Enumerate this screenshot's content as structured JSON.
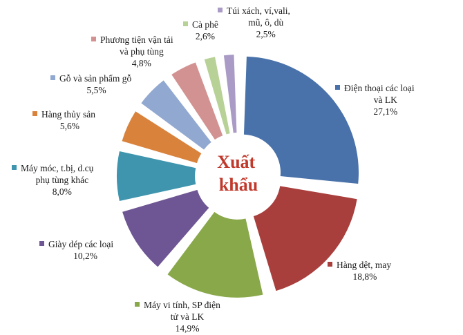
{
  "chart_data": {
    "type": "pie",
    "variant": "exploded-donut",
    "center_text": [
      "Xuất",
      "khẩu"
    ],
    "slices": [
      {
        "label_lines": [
          "Điện thoại các loại",
          "và LK"
        ],
        "value_text": "27,1%",
        "value": 27.1,
        "color": "#4a72aa"
      },
      {
        "label_lines": [
          "Hàng dệt, may"
        ],
        "value_text": "18,8%",
        "value": 18.8,
        "color": "#a93f3d"
      },
      {
        "label_lines": [
          "Máy vi tính, SP điện",
          "tử và LK"
        ],
        "value_text": "14,9%",
        "value": 14.9,
        "color": "#89a84a"
      },
      {
        "label_lines": [
          "Giày dép các loại"
        ],
        "value_text": "10,2%",
        "value": 10.2,
        "color": "#6e5593"
      },
      {
        "label_lines": [
          "Máy móc, t.bị, d.cụ",
          "phụ tùng khác"
        ],
        "value_text": "8,0%",
        "value": 8.0,
        "color": "#3e95ad"
      },
      {
        "label_lines": [
          "Hàng thủy sản"
        ],
        "value_text": "5,6%",
        "value": 5.6,
        "color": "#d9823c"
      },
      {
        "label_lines": [
          "Gỗ và sản phẩm gỗ"
        ],
        "value_text": "5,5%",
        "value": 5.5,
        "color": "#91a8d0"
      },
      {
        "label_lines": [
          "Phương tiện vận tải",
          "và phụ tùng"
        ],
        "value_text": "4,8%",
        "value": 4.8,
        "color": "#d39292"
      },
      {
        "label_lines": [
          "Cà phê"
        ],
        "value_text": "2,6%",
        "value": 2.6,
        "color": "#b7d197"
      },
      {
        "label_lines": [
          "Túi xách, ví,vali,",
          "mũ, ô, dù"
        ],
        "value_text": "2,5%",
        "value": 2.5,
        "color": "#a99bc5"
      }
    ]
  }
}
